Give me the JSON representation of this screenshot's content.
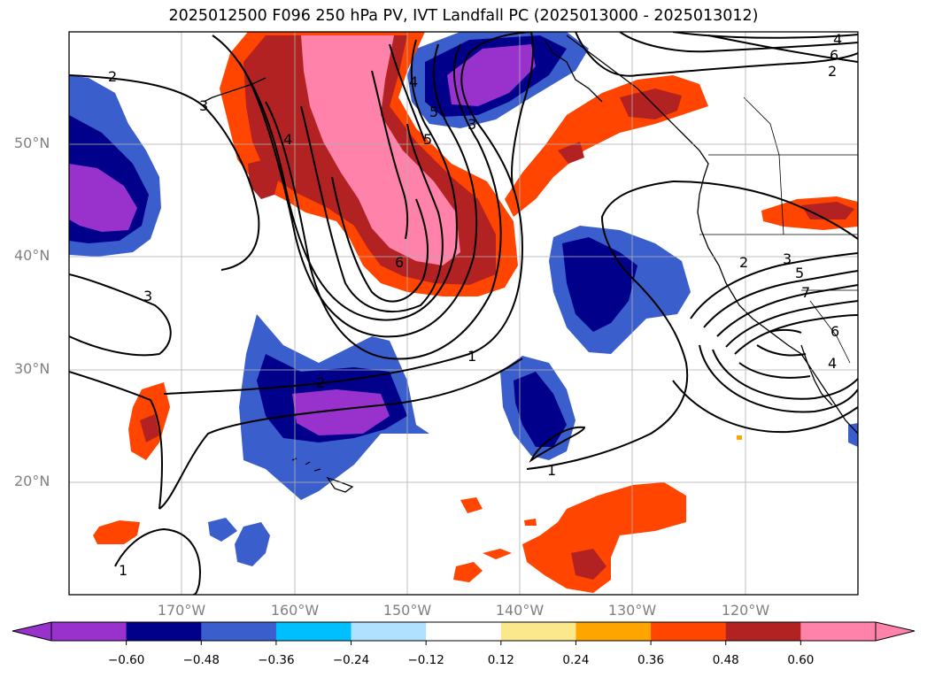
{
  "title": "2025012500 F096 250 hPa PV, IVT Landfall PC (2025013000 - 2025013012)",
  "lat_labels": [
    "50°N",
    "40°N",
    "30°N",
    "20°N"
  ],
  "lon_labels": [
    "170°W",
    "160°W",
    "150°W",
    "140°W",
    "130°W",
    "120°W"
  ],
  "colorbar": {
    "ticks": [
      "−0.60",
      "−0.48",
      "−0.36",
      "−0.24",
      "−0.12",
      "0.12",
      "0.24",
      "0.36",
      "0.48",
      "0.60"
    ],
    "colors": [
      "#9932cc",
      "#00008b",
      "#3a5fcd",
      "#00bfff",
      "#b0e2ff",
      "#ffffff",
      "#fce88c",
      "#ffa500",
      "#ff4500",
      "#b22222",
      "#ff82ab"
    ]
  },
  "contour_labels": [
    "2",
    "3",
    "2",
    "3",
    "4",
    "5",
    "6",
    "4",
    "5",
    "3",
    "2",
    "4",
    "6",
    "2",
    "3",
    "5",
    "7",
    "6",
    "4",
    "1",
    "1",
    "1"
  ],
  "colors": {
    "lat_lon_labels": "#808080",
    "contour": "#000000"
  }
}
